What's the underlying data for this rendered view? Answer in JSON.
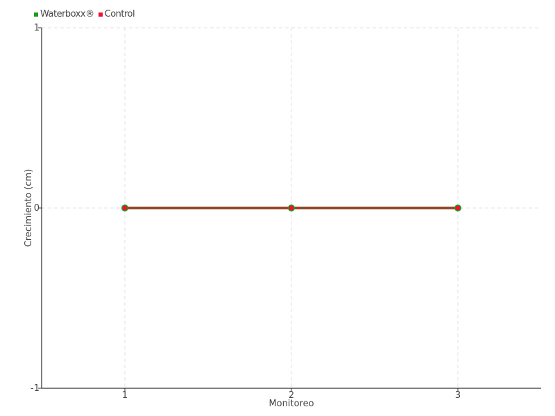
{
  "chart_data": {
    "type": "line",
    "xlabel": "Monitoreo",
    "ylabel": "Crecimiento (cm)",
    "x": [
      1,
      2,
      3
    ],
    "x_ticks": [
      "1",
      "2",
      "3"
    ],
    "y_ticks": [
      "1",
      "0",
      "-1"
    ],
    "xlim": [
      0.5,
      3.5
    ],
    "ylim": [
      -1,
      1
    ],
    "grid": true,
    "legend_position": "top-left",
    "series": [
      {
        "name": "Waterboxx®",
        "values": [
          0,
          0,
          0
        ],
        "color": "#1a9e1a"
      },
      {
        "name": "Control",
        "values": [
          0,
          0,
          0
        ],
        "color": "#ee1133"
      }
    ]
  }
}
